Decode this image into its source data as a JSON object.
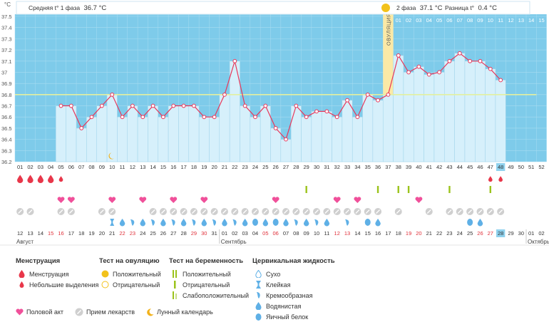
{
  "header": {
    "phase1_label": "Средняя t° 1 фаза",
    "phase1_value": "36.7 °C",
    "phase2_label": "2 фаза",
    "phase2_value": "37.1 °C",
    "diff_label": "Разница t°",
    "diff_value": "0.4 °C",
    "ovulation_label": "ОВУЛЯЦИЯ"
  },
  "chart_data": {
    "type": "line",
    "ylabel": "°C",
    "ylim": [
      36.2,
      37.5
    ],
    "yticks": [
      "36.2",
      "36.3",
      "36.4",
      "36.5",
      "36.6",
      "36.7",
      "36.8",
      "36.9",
      "37",
      "37.1",
      "37.2",
      "37.3",
      "37.4",
      "37.5"
    ],
    "coverline": 36.8,
    "cycle_days": [
      "01",
      "02",
      "03",
      "04",
      "05",
      "06",
      "07",
      "08",
      "09",
      "10",
      "11",
      "12",
      "13",
      "14",
      "15",
      "16",
      "17",
      "18",
      "19",
      "20",
      "21",
      "22",
      "23",
      "24",
      "25",
      "26",
      "27",
      "28",
      "29",
      "30",
      "31",
      "32",
      "33",
      "34",
      "35",
      "36",
      "37",
      "38",
      "39",
      "40",
      "41",
      "42",
      "43",
      "44",
      "45",
      "46",
      "47",
      "48",
      "49",
      "50",
      "51",
      "52"
    ],
    "top_day_labels": [
      "01",
      "02",
      "03",
      "04",
      "05",
      "06",
      "07",
      "08",
      "09",
      "10",
      "11",
      "12",
      "13",
      "14",
      "15"
    ],
    "temperatures": [
      null,
      null,
      null,
      null,
      36.7,
      36.7,
      36.5,
      36.6,
      36.7,
      36.8,
      36.6,
      36.7,
      36.6,
      36.7,
      36.6,
      36.7,
      36.7,
      36.7,
      36.6,
      36.6,
      36.8,
      37.1,
      36.7,
      36.6,
      36.7,
      36.5,
      36.4,
      36.7,
      36.6,
      36.65,
      36.65,
      36.6,
      36.75,
      36.6,
      36.8,
      36.75,
      36.8,
      37.15,
      37.0,
      37.05,
      36.98,
      37.0,
      37.1,
      37.17,
      37.1,
      37.1,
      37.03,
      36.93,
      null,
      null,
      null,
      null
    ],
    "ovulation_day": 37,
    "current_day": 48,
    "dates": [
      "12",
      "13",
      "14",
      "15",
      "16",
      "17",
      "18",
      "19",
      "20",
      "21",
      "22",
      "23",
      "24",
      "25",
      "26",
      "27",
      "28",
      "29",
      "30",
      "31",
      "01",
      "02",
      "03",
      "04",
      "05",
      "06",
      "07",
      "08",
      "09",
      "10",
      "11",
      "12",
      "13",
      "14",
      "15",
      "16",
      "17",
      "18",
      "19",
      "20",
      "21",
      "22",
      "23",
      "24",
      "25",
      "26",
      "27",
      "28",
      "29",
      "30",
      "01",
      "02"
    ],
    "red_date_indices": [
      3,
      4,
      10,
      11,
      17,
      18,
      24,
      25,
      31,
      32,
      38,
      39,
      45,
      46
    ],
    "months": [
      {
        "label": "Август",
        "index": 0
      },
      {
        "label": "Сентябрь",
        "index": 20
      },
      {
        "label": "Октябрь",
        "index": 50
      }
    ],
    "menstruation_big_days": [
      1,
      2,
      3,
      4
    ],
    "menstruation_small_days": [
      5,
      47,
      48
    ],
    "intercourse_days": [
      5,
      6,
      10,
      13,
      16,
      19,
      26,
      32,
      34,
      40
    ],
    "pregnancy_test_days": [
      29,
      36,
      38,
      39,
      43,
      47
    ],
    "medication_days": [
      1,
      2,
      5,
      6,
      9,
      10,
      14,
      15,
      16,
      17,
      18,
      19,
      20,
      21,
      22,
      23,
      24,
      25,
      26,
      27,
      28,
      29,
      30,
      31,
      32,
      33,
      34,
      35,
      36,
      38,
      41,
      43,
      44,
      45,
      46,
      47,
      48
    ],
    "cervical_days": [
      {
        "day": 10,
        "type": "sticky"
      },
      {
        "day": 11,
        "type": "watery"
      },
      {
        "day": 12,
        "type": "creamy"
      },
      {
        "day": 13,
        "type": "watery"
      },
      {
        "day": 14,
        "type": "creamy"
      },
      {
        "day": 15,
        "type": "watery"
      },
      {
        "day": 16,
        "type": "creamy"
      },
      {
        "day": 17,
        "type": "watery"
      },
      {
        "day": 18,
        "type": "creamy"
      },
      {
        "day": 19,
        "type": "watery"
      },
      {
        "day": 20,
        "type": "creamy"
      },
      {
        "day": 21,
        "type": "watery"
      },
      {
        "day": 22,
        "type": "creamy"
      },
      {
        "day": 23,
        "type": "watery"
      },
      {
        "day": 24,
        "type": "eggwhite"
      },
      {
        "day": 25,
        "type": "watery"
      },
      {
        "day": 26,
        "type": "eggwhite"
      },
      {
        "day": 27,
        "type": "watery"
      },
      {
        "day": 28,
        "type": "creamy"
      },
      {
        "day": 29,
        "type": "watery"
      },
      {
        "day": 30,
        "type": "creamy"
      },
      {
        "day": 31,
        "type": "watery"
      },
      {
        "day": 33,
        "type": "creamy"
      },
      {
        "day": 35,
        "type": "eggwhite"
      },
      {
        "day": 36,
        "type": "watery"
      },
      {
        "day": 45,
        "type": "eggwhite"
      },
      {
        "day": 46,
        "type": "watery"
      }
    ]
  },
  "legend": {
    "menstruation": {
      "title": "Менструация",
      "items": [
        "Менструация",
        "Небольшие выделения"
      ]
    },
    "ovulation_test": {
      "title": "Тест на овуляцию",
      "items": [
        "Положительный",
        "Отрицательный"
      ]
    },
    "pregnancy_test": {
      "title": "Тест на беременность",
      "items": [
        "Положительный",
        "Отрицательный",
        "Слабоположительный"
      ]
    },
    "cervical": {
      "title": "Цервикальная жидкость",
      "items": [
        "Сухо",
        "Клейкая",
        "Кремообразная",
        "Водянистая",
        "Яичный белок"
      ]
    },
    "bottom": [
      "Половой акт",
      "Прием лекарств",
      "Лунный календарь"
    ]
  },
  "colors": {
    "plot_bg": "#7ecbea",
    "bar": "#d6f0fb",
    "bar_border": "#9fd3ea",
    "line": "#e8375a",
    "coverline": "#e3f0a0",
    "ovulation": "#fbe9a6",
    "sun": "#f2c21b",
    "drop": "#e8374a",
    "heart": "#f0509a",
    "test": "#9bc31c",
    "pill": "#cfcfcf",
    "cervical": "#5fb0e6",
    "today": "#8fd2ee"
  }
}
